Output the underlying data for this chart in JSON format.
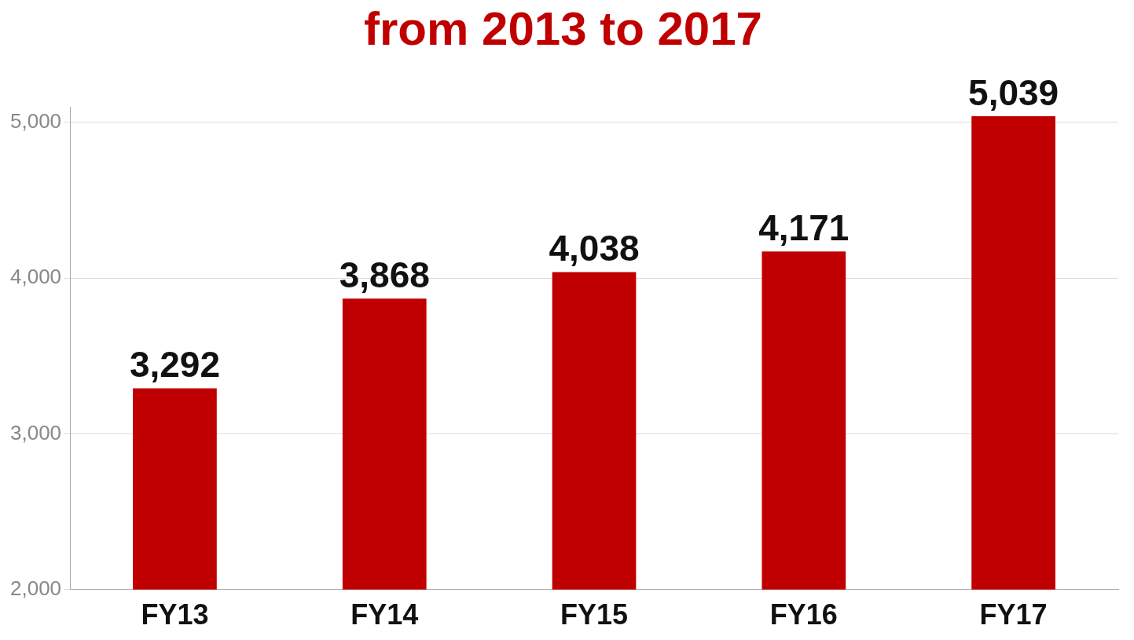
{
  "chart_data": {
    "type": "bar",
    "title": "from 2013 to 2017",
    "categories": [
      "FY13",
      "FY14",
      "FY15",
      "FY16",
      "FY17"
    ],
    "values": [
      3292,
      3868,
      4038,
      4171,
      5039
    ],
    "color": "#c00000",
    "ylim": [
      2000,
      5100
    ],
    "yticks": [
      {
        "value": 2000,
        "label": "2,000"
      },
      {
        "value": 3000,
        "label": "3,000"
      },
      {
        "value": 4000,
        "label": "4,000"
      },
      {
        "value": 5000,
        "label": "5,000"
      }
    ],
    "grid": "y",
    "value_labels": [
      "3,292",
      "3,868",
      "4,038",
      "4,171",
      "5,039"
    ]
  }
}
